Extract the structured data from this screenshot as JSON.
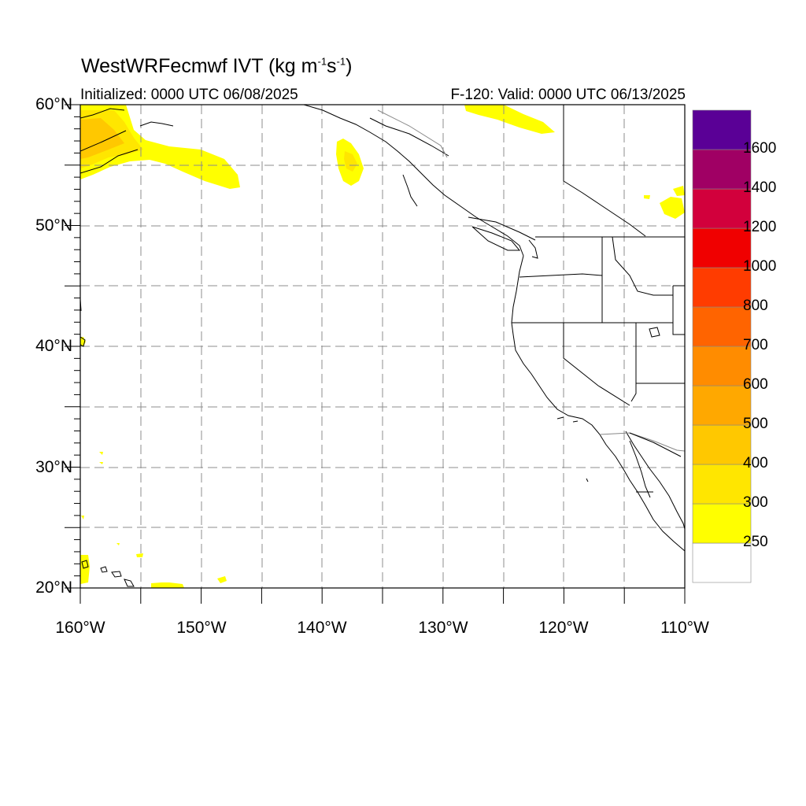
{
  "title": {
    "model": "WestWRFecmwf IVT (kg m",
    "exp1": "-1",
    "mid": "s",
    "exp2": "-1",
    "close": ")"
  },
  "subtitle_left": "Initialized: 0000 UTC 06/08/2025",
  "subtitle_right": "F-120: Valid: 0000 UTC 06/13/2025",
  "lat_labels": [
    "60°N",
    "50°N",
    "40°N",
    "30°N",
    "20°N"
  ],
  "lon_labels": [
    "160°W",
    "150°W",
    "140°W",
    "130°W",
    "120°W",
    "110°W"
  ],
  "colorbar": {
    "levels": [
      {
        "label": "250",
        "color": "#ffff00"
      },
      {
        "label": "300",
        "color": "#ffe600"
      },
      {
        "label": "400",
        "color": "#ffc800"
      },
      {
        "label": "500",
        "color": "#ffa800"
      },
      {
        "label": "600",
        "color": "#ff8c00"
      },
      {
        "label": "700",
        "color": "#ff6400"
      },
      {
        "label": "800",
        "color": "#ff3c00"
      },
      {
        "label": "1000",
        "color": "#f00000"
      },
      {
        "label": "1200",
        "color": "#d2003c"
      },
      {
        "label": "1400",
        "color": "#a00064"
      },
      {
        "label": "1600",
        "color": "#5a0096"
      }
    ],
    "below_color": "#ffffff"
  },
  "chart_data": {
    "type": "heatmap",
    "variable": "IVT",
    "units": "kg m-1 s-1",
    "lat_range": [
      20,
      60
    ],
    "lon_range": [
      -160,
      -110
    ],
    "grid_lines": "dashed gray every 5 degrees",
    "colorbar_position": "right",
    "features": [
      {
        "region": "Gulf of Alaska (56-60N, 160-147W)",
        "level": "250-400"
      },
      {
        "region": "Off SE Alaska (55N, 138W)",
        "level": "250-300"
      },
      {
        "region": "Near 60N, 128-123W",
        "level": "250"
      },
      {
        "region": "Near 52N, 113-110W",
        "level": "250"
      },
      {
        "region": "West of Hawaii (20-22N, 160-147W)",
        "level": "250"
      },
      {
        "region": "40N, 160W",
        "level": "250"
      }
    ]
  }
}
